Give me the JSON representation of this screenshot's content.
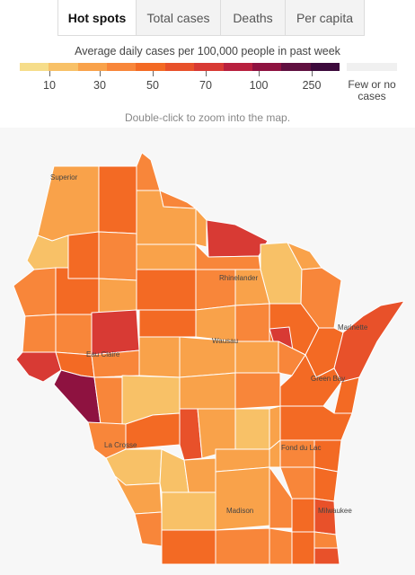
{
  "tabs": [
    {
      "label": "Hot spots",
      "active": true
    },
    {
      "label": "Total cases",
      "active": false
    },
    {
      "label": "Deaths",
      "active": false
    },
    {
      "label": "Per capita",
      "active": false
    }
  ],
  "legend": {
    "title": "Average daily cases per 100,000 people in past week",
    "colors": [
      "#f6dd8a",
      "#f8c167",
      "#f9a24a",
      "#f8863a",
      "#f36a24",
      "#e8512a",
      "#d83a34",
      "#b8203e",
      "#8e1240",
      "#601040",
      "#3d0a3c"
    ],
    "ticks": [
      "10",
      "30",
      "50",
      "70",
      "100",
      "250"
    ],
    "no_cases_label": "Few or no cases",
    "no_cases_color": "#f0f0f0"
  },
  "hint": "Double-click to zoom into the map.",
  "map": {
    "state": "Wisconsin",
    "background_color": "#f7f7f7",
    "cities": [
      "Superior",
      "Rhinelander",
      "Marinette",
      "Wausau",
      "Eau Claire",
      "Green Bay",
      "La Crosse",
      "Fond du Lac",
      "Madison",
      "Milwaukee"
    ]
  }
}
